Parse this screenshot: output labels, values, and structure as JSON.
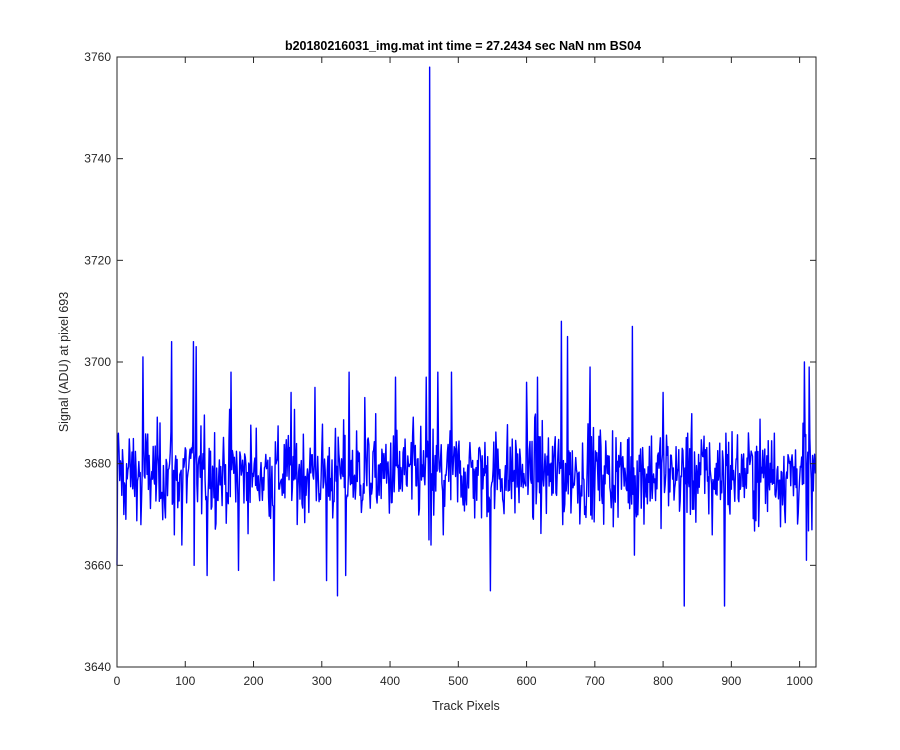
{
  "chart_data": {
    "type": "line",
    "title": "b20180216031_img.mat int time = 27.2434 sec  NaN nm BS04",
    "xlabel": "Track Pixels",
    "ylabel": "Signal (ADU) at pixel 693",
    "xlim": [
      0,
      1024
    ],
    "ylim": [
      3640,
      3760
    ],
    "xticks": [
      0,
      100,
      200,
      300,
      400,
      500,
      600,
      700,
      800,
      900,
      1000
    ],
    "yticks": [
      3640,
      3660,
      3680,
      3700,
      3720,
      3740,
      3760
    ],
    "grid": false,
    "line_color": "#0000ff",
    "series": [
      {
        "points_count": 1024,
        "baseline": 3678,
        "noise_min": 3652,
        "noise_max": 3708,
        "x": [
          0,
          2,
          10,
          35,
          38,
          55,
          80,
          84,
          95,
          112,
          113,
          116,
          120,
          132,
          135,
          167,
          178,
          230,
          255,
          290,
          307,
          323,
          325,
          335,
          340,
          363,
          408,
          453,
          457,
          458,
          460,
          461,
          470,
          478,
          490,
          547,
          600,
          616,
          651,
          653,
          660,
          693,
          755,
          758,
          800,
          831,
          836,
          872,
          890,
          892,
          930,
          963,
          1007,
          1010,
          1014,
          1018,
          1024
        ],
        "y": [
          3660,
          3686,
          3670,
          3668,
          3701,
          3676,
          3704,
          3666,
          3664,
          3704,
          3660,
          3703,
          3681,
          3658,
          3683,
          3698,
          3659,
          3657,
          3694,
          3695,
          3657,
          3654,
          3682,
          3658,
          3698,
          3693,
          3697,
          3697,
          3665,
          3758,
          3664,
          3678,
          3698,
          3666,
          3698,
          3655,
          3696,
          3697,
          3708,
          3668,
          3705,
          3699,
          3707,
          3662,
          3694,
          3652,
          3686,
          3666,
          3652,
          3686,
          3682,
          3686,
          3700,
          3661,
          3699,
          3667,
          3677
        ]
      }
    ]
  }
}
